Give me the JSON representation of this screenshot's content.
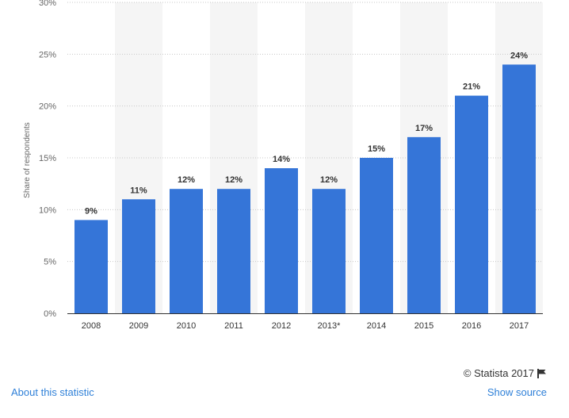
{
  "chart_data": {
    "type": "bar",
    "categories": [
      "2008",
      "2009",
      "2010",
      "2011",
      "2012",
      "2013*",
      "2014",
      "2015",
      "2016",
      "2017"
    ],
    "values": [
      9,
      11,
      12,
      12,
      14,
      12,
      15,
      17,
      21,
      24
    ],
    "data_labels": [
      "9%",
      "11%",
      "12%",
      "12%",
      "14%",
      "12%",
      "15%",
      "17%",
      "21%",
      "24%"
    ],
    "ylabel": "Share of respondents",
    "ylim": [
      0,
      30
    ],
    "y_ticks": [
      0,
      5,
      10,
      15,
      20,
      25,
      30
    ],
    "y_tick_labels": [
      "0%",
      "5%",
      "10%",
      "15%",
      "20%",
      "25%",
      "30%"
    ],
    "grid": true,
    "bar_color": "#3575d8",
    "band_color": "#f5f5f5"
  },
  "footer": {
    "credit": "© Statista 2017",
    "about_link": "About this statistic",
    "source_link": "Show source"
  }
}
